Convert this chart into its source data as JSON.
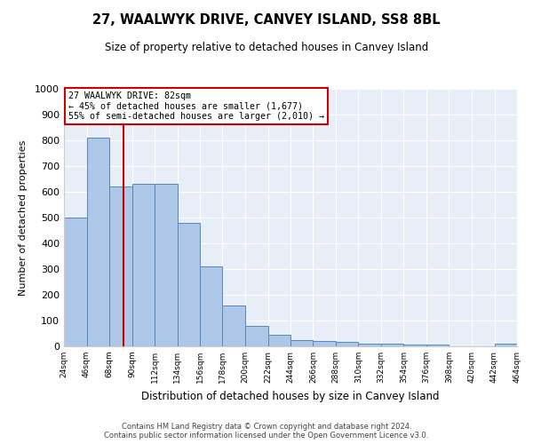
{
  "title": "27, WAALWYK DRIVE, CANVEY ISLAND, SS8 8BL",
  "subtitle": "Size of property relative to detached houses in Canvey Island",
  "xlabel": "Distribution of detached houses by size in Canvey Island",
  "ylabel": "Number of detached properties",
  "footnote1": "Contains HM Land Registry data © Crown copyright and database right 2024.",
  "footnote2": "Contains public sector information licensed under the Open Government Licence v3.0.",
  "annotation_title": "27 WAALWYK DRIVE: 82sqm",
  "annotation_line2": "← 45% of detached houses are smaller (1,677)",
  "annotation_line3": "55% of semi-detached houses are larger (2,010) →",
  "property_sqm": 82,
  "bin_edges": [
    24,
    46,
    68,
    90,
    112,
    134,
    156,
    178,
    200,
    222,
    244,
    266,
    288,
    310,
    332,
    354,
    376,
    398,
    420,
    442,
    464
  ],
  "bar_values": [
    500,
    810,
    620,
    630,
    630,
    480,
    310,
    160,
    80,
    45,
    25,
    20,
    17,
    12,
    10,
    8,
    7,
    0,
    0,
    10
  ],
  "bar_color": "#aec6e8",
  "bar_edge_color": "#5588bb",
  "highlight_color": "#cc0000",
  "annotation_box_color": "#cc0000",
  "background_color": "#e8eef8",
  "grid_color": "#ffffff",
  "ylim": [
    0,
    1000
  ],
  "yticks": [
    0,
    100,
    200,
    300,
    400,
    500,
    600,
    700,
    800,
    900,
    1000
  ]
}
